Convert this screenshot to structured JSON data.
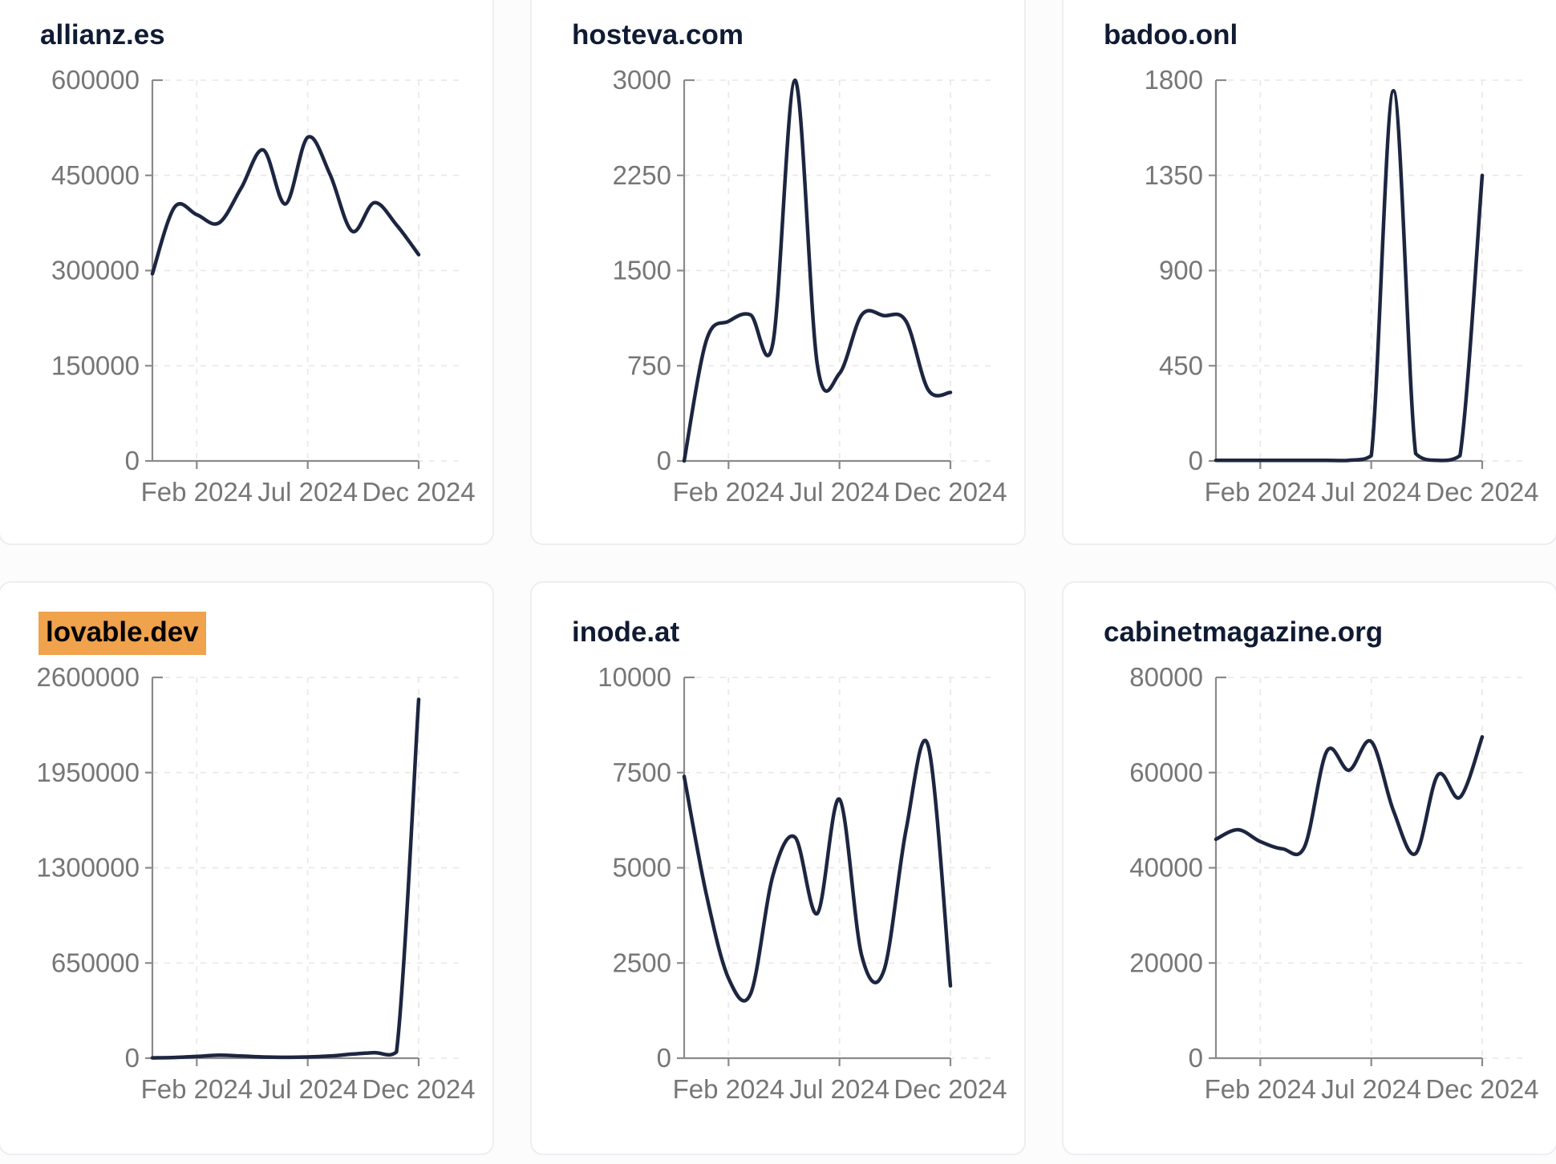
{
  "colors": {
    "line": "#1d2640",
    "title_text": "#101b33",
    "axis": "#8a8a8a",
    "tick_label": "#767676",
    "grid": "#e9e9e9",
    "card_border": "#eceef2",
    "card_background": "#ffffff",
    "page_background": "#fcfcfd",
    "highlight_background": "#f0a24d",
    "highlight_text": "#000000"
  },
  "x_axis_labels": [
    "Feb 2024",
    "Jul 2024",
    "Dec 2024"
  ],
  "chart_data": [
    {
      "type": "line",
      "title": "allianz.es",
      "title_highlighted": false,
      "x_tick_labels": [
        "Feb 2024",
        "Jul 2024",
        "Dec 2024"
      ],
      "x_tick_month_indices": [
        2,
        7,
        12
      ],
      "y_ticks": [
        0,
        150000,
        300000,
        450000,
        600000
      ],
      "ylim": [
        0,
        600000
      ],
      "values": [
        295000,
        400000,
        388000,
        375000,
        430000,
        490000,
        405000,
        510000,
        452000,
        362000,
        407000,
        372000,
        325000
      ]
    },
    {
      "type": "line",
      "title": "hosteva.com",
      "title_highlighted": false,
      "x_tick_labels": [
        "Feb 2024",
        "Jul 2024",
        "Dec 2024"
      ],
      "x_tick_month_indices": [
        2,
        7,
        12
      ],
      "y_ticks": [
        0,
        750,
        1500,
        2250,
        3000
      ],
      "ylim": [
        0,
        3000
      ],
      "values": [
        0,
        950,
        1100,
        1150,
        930,
        3000,
        760,
        690,
        1150,
        1145,
        1100,
        560,
        540
      ]
    },
    {
      "type": "line",
      "title": "badoo.onl",
      "title_highlighted": false,
      "x_tick_labels": [
        "Feb 2024",
        "Jul 2024",
        "Dec 2024"
      ],
      "x_tick_month_indices": [
        2,
        7,
        12
      ],
      "y_ticks": [
        0,
        450,
        900,
        1350,
        1800
      ],
      "ylim": [
        0,
        1800
      ],
      "values": [
        3,
        3,
        3,
        3,
        3,
        3,
        3,
        25,
        1750,
        35,
        3,
        25,
        1350
      ]
    },
    {
      "type": "line",
      "title": "lovable.dev",
      "title_highlighted": true,
      "x_tick_labels": [
        "Feb 2024",
        "Jul 2024",
        "Dec 2024"
      ],
      "x_tick_month_indices": [
        2,
        7,
        12
      ],
      "y_ticks": [
        0,
        650000,
        1300000,
        1950000,
        2600000
      ],
      "ylim": [
        0,
        2600000
      ],
      "values": [
        2000,
        5000,
        12000,
        20000,
        15000,
        8000,
        6000,
        8000,
        15000,
        28000,
        38000,
        42000,
        2450000
      ]
    },
    {
      "type": "line",
      "title": "inode.at",
      "title_highlighted": false,
      "x_tick_labels": [
        "Feb 2024",
        "Jul 2024",
        "Dec 2024"
      ],
      "x_tick_month_indices": [
        2,
        7,
        12
      ],
      "y_ticks": [
        0,
        2500,
        5000,
        7500,
        10000
      ],
      "ylim": [
        0,
        10000
      ],
      "values": [
        7400,
        4300,
        2100,
        1700,
        4800,
        5800,
        3800,
        6800,
        2700,
        2300,
        6000,
        8200,
        1900
      ]
    },
    {
      "type": "line",
      "title": "cabinetmagazine.org",
      "title_highlighted": false,
      "x_tick_labels": [
        "Feb 2024",
        "Jul 2024",
        "Dec 2024"
      ],
      "x_tick_month_indices": [
        2,
        7,
        12
      ],
      "y_ticks": [
        0,
        20000,
        40000,
        60000,
        80000
      ],
      "ylim": [
        0,
        80000
      ],
      "values": [
        46000,
        48000,
        45500,
        44000,
        44500,
        64500,
        60500,
        66500,
        52000,
        43000,
        59500,
        54800,
        67500
      ]
    }
  ]
}
